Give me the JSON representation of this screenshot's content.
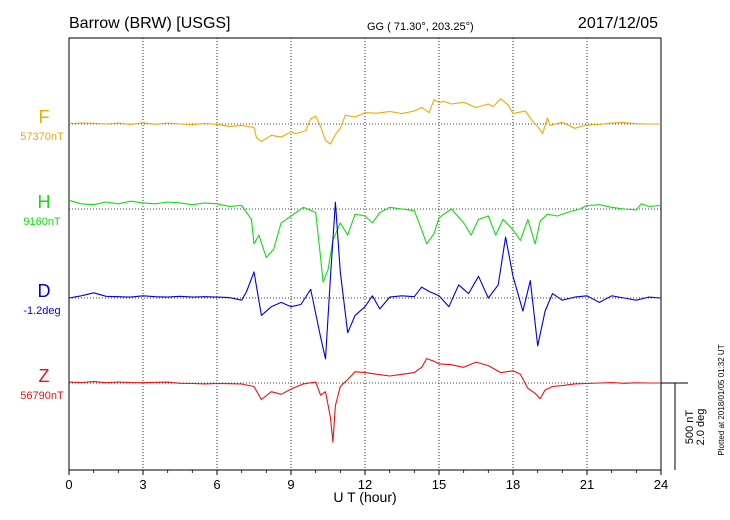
{
  "chart_data": {
    "type": "line",
    "title": "Barrow (BRW)  [USGS]",
    "coordinates": "GG ( 71.30°, 203.25°)",
    "date": "2017/12/05",
    "xlabel": "U T (hour)",
    "xlim": [
      0,
      24
    ],
    "x_ticks": [
      "0",
      "3",
      "6",
      "9",
      "12",
      "15",
      "18",
      "21",
      "24"
    ],
    "grid": true,
    "scale_bar": {
      "value_nT": "500 nT",
      "value_deg": "2.0 deg"
    },
    "plotted_note": "Plotted at 2018/01/05 01:32 UT",
    "series": [
      {
        "name": "F",
        "baseline_label": "57370nT",
        "color": "#f2a900",
        "unit": "nT",
        "baseline": 57370,
        "points": [
          [
            0,
            3
          ],
          [
            0.5,
            5
          ],
          [
            1,
            4
          ],
          [
            1.5,
            0
          ],
          [
            2,
            5
          ],
          [
            2.5,
            -3
          ],
          [
            3,
            7
          ],
          [
            3.5,
            -2
          ],
          [
            4,
            6
          ],
          [
            4.5,
            0
          ],
          [
            5,
            -4
          ],
          [
            5.5,
            3
          ],
          [
            6,
            -2
          ],
          [
            6.5,
            -14
          ],
          [
            7,
            -8
          ],
          [
            7.5,
            -20
          ],
          [
            7.6,
            -80
          ],
          [
            7.8,
            -100
          ],
          [
            8.2,
            -65
          ],
          [
            8.6,
            -75
          ],
          [
            9,
            -45
          ],
          [
            9.2,
            -55
          ],
          [
            9.6,
            -38
          ],
          [
            9.8,
            30
          ],
          [
            10,
            45
          ],
          [
            10.2,
            -15
          ],
          [
            10.4,
            -95
          ],
          [
            10.6,
            -115
          ],
          [
            10.8,
            -60
          ],
          [
            11,
            -25
          ],
          [
            11.2,
            50
          ],
          [
            11.6,
            40
          ],
          [
            12,
            65
          ],
          [
            12.5,
            62
          ],
          [
            13,
            72
          ],
          [
            13.5,
            60
          ],
          [
            14,
            75
          ],
          [
            14.3,
            95
          ],
          [
            14.6,
            65
          ],
          [
            14.8,
            140
          ],
          [
            15,
            125
          ],
          [
            15.2,
            130
          ],
          [
            15.5,
            115
          ],
          [
            16,
            125
          ],
          [
            16.5,
            95
          ],
          [
            17,
            115
          ],
          [
            17.2,
            100
          ],
          [
            17.5,
            145
          ],
          [
            17.8,
            110
          ],
          [
            18,
            60
          ],
          [
            18.5,
            75
          ],
          [
            18.8,
            15
          ],
          [
            19,
            -15
          ],
          [
            19.2,
            -55
          ],
          [
            19.4,
            35
          ],
          [
            19.5,
            -10
          ],
          [
            19.7,
            0
          ],
          [
            20,
            10
          ],
          [
            20.5,
            -25
          ],
          [
            21,
            -5
          ],
          [
            21.5,
            -3
          ],
          [
            22,
            5
          ],
          [
            22.5,
            8
          ],
          [
            23,
            2
          ],
          [
            23.5,
            0
          ],
          [
            24,
            0
          ]
        ]
      },
      {
        "name": "H",
        "baseline_label": "9160nT",
        "color": "#11dd11",
        "unit": "nT",
        "baseline": 9160,
        "points": [
          [
            0,
            50
          ],
          [
            0.5,
            30
          ],
          [
            1,
            25
          ],
          [
            1.5,
            40
          ],
          [
            2,
            30
          ],
          [
            2.5,
            45
          ],
          [
            3,
            35
          ],
          [
            3.5,
            30
          ],
          [
            4,
            40
          ],
          [
            4.5,
            35
          ],
          [
            5,
            25
          ],
          [
            5.5,
            35
          ],
          [
            6,
            30
          ],
          [
            6.5,
            15
          ],
          [
            7,
            20
          ],
          [
            7.2,
            -20
          ],
          [
            7.4,
            -60
          ],
          [
            7.5,
            -200
          ],
          [
            7.7,
            -150
          ],
          [
            8,
            -280
          ],
          [
            8.3,
            -230
          ],
          [
            8.6,
            -80
          ],
          [
            9,
            -40
          ],
          [
            9.5,
            10
          ],
          [
            10,
            -20
          ],
          [
            10.2,
            -280
          ],
          [
            10.3,
            -420
          ],
          [
            10.5,
            -350
          ],
          [
            10.7,
            -180
          ],
          [
            11,
            -80
          ],
          [
            11.3,
            -150
          ],
          [
            11.6,
            -30
          ],
          [
            12,
            -40
          ],
          [
            12.3,
            -80
          ],
          [
            12.6,
            -20
          ],
          [
            13,
            10
          ],
          [
            13.5,
            0
          ],
          [
            14,
            -10
          ],
          [
            14.3,
            -120
          ],
          [
            14.5,
            -200
          ],
          [
            14.8,
            -140
          ],
          [
            15,
            -50
          ],
          [
            15.5,
            0
          ],
          [
            16,
            -80
          ],
          [
            16.3,
            -150
          ],
          [
            16.6,
            -60
          ],
          [
            17,
            -40
          ],
          [
            17.3,
            -150
          ],
          [
            17.6,
            -60
          ],
          [
            18,
            -120
          ],
          [
            18.3,
            -180
          ],
          [
            18.6,
            -60
          ],
          [
            18.9,
            -200
          ],
          [
            19.1,
            -70
          ],
          [
            19.4,
            -30
          ],
          [
            19.8,
            -40
          ],
          [
            20.2,
            -20
          ],
          [
            20.7,
            0
          ],
          [
            21,
            20
          ],
          [
            21.5,
            25
          ],
          [
            22,
            10
          ],
          [
            22.5,
            0
          ],
          [
            23,
            -5
          ],
          [
            23.2,
            30
          ],
          [
            23.5,
            15
          ],
          [
            24,
            20
          ]
        ]
      },
      {
        "name": "D",
        "baseline_label": "-1.2deg",
        "color": "#0000dd",
        "unit": "deg",
        "baseline": -1.2,
        "points": [
          [
            0,
            0.0
          ],
          [
            0.5,
            0.05
          ],
          [
            1,
            0.12
          ],
          [
            1.5,
            0.04
          ],
          [
            2,
            0.03
          ],
          [
            2.5,
            0.02
          ],
          [
            3,
            0.05
          ],
          [
            3.5,
            0.03
          ],
          [
            4,
            0.02
          ],
          [
            4.5,
            0.04
          ],
          [
            5,
            0.02
          ],
          [
            5.5,
            0.03
          ],
          [
            6,
            0.02
          ],
          [
            6.5,
            0.01
          ],
          [
            7,
            -0.05
          ],
          [
            7.2,
            0.15
          ],
          [
            7.5,
            0.6
          ],
          [
            7.8,
            -0.4
          ],
          [
            8.2,
            -0.2
          ],
          [
            8.6,
            -0.1
          ],
          [
            9,
            -0.2
          ],
          [
            9.4,
            -0.15
          ],
          [
            9.8,
            0.2
          ],
          [
            10.2,
            -0.9
          ],
          [
            10.4,
            -1.4
          ],
          [
            10.6,
            0.5
          ],
          [
            10.8,
            2.2
          ],
          [
            11,
            0.6
          ],
          [
            11.3,
            -0.8
          ],
          [
            11.6,
            -0.4
          ],
          [
            12,
            -0.2
          ],
          [
            12.3,
            0.05
          ],
          [
            12.6,
            -0.25
          ],
          [
            13,
            0.02
          ],
          [
            13.5,
            0.05
          ],
          [
            14,
            0.03
          ],
          [
            14.3,
            0.25
          ],
          [
            14.6,
            0.15
          ],
          [
            15,
            0.05
          ],
          [
            15.4,
            -0.2
          ],
          [
            15.8,
            0.3
          ],
          [
            16.2,
            0.1
          ],
          [
            16.6,
            0.5
          ],
          [
            17,
            0.0
          ],
          [
            17.4,
            0.3
          ],
          [
            17.7,
            1.4
          ],
          [
            18,
            0.5
          ],
          [
            18.4,
            -0.3
          ],
          [
            18.7,
            0.4
          ],
          [
            19,
            -1.1
          ],
          [
            19.3,
            -0.3
          ],
          [
            19.6,
            0.1
          ],
          [
            20,
            -0.05
          ],
          [
            20.5,
            0.02
          ],
          [
            21,
            0.05
          ],
          [
            21.5,
            -0.1
          ],
          [
            22,
            0.05
          ],
          [
            22.5,
            0.0
          ],
          [
            23,
            -0.05
          ],
          [
            23.5,
            0.02
          ],
          [
            24,
            0.0
          ]
        ]
      },
      {
        "name": "Z",
        "baseline_label": "56790nT",
        "color": "#ee1111",
        "unit": "nT",
        "baseline": 56790,
        "points": [
          [
            0,
            5
          ],
          [
            0.5,
            3
          ],
          [
            1,
            8
          ],
          [
            1.5,
            2
          ],
          [
            2,
            6
          ],
          [
            2.5,
            3
          ],
          [
            3,
            2
          ],
          [
            3.5,
            4
          ],
          [
            4,
            5
          ],
          [
            4.5,
            -2
          ],
          [
            5,
            -3
          ],
          [
            5.5,
            -5
          ],
          [
            6,
            -3
          ],
          [
            6.5,
            -4
          ],
          [
            7,
            -6
          ],
          [
            7.5,
            -20
          ],
          [
            7.8,
            -95
          ],
          [
            8.2,
            -50
          ],
          [
            8.6,
            -65
          ],
          [
            9,
            -35
          ],
          [
            9.5,
            -5
          ],
          [
            10,
            5
          ],
          [
            10.2,
            -70
          ],
          [
            10.4,
            -50
          ],
          [
            10.6,
            -200
          ],
          [
            10.7,
            -340
          ],
          [
            10.8,
            -130
          ],
          [
            11,
            -20
          ],
          [
            11.3,
            20
          ],
          [
            11.6,
            65
          ],
          [
            12,
            60
          ],
          [
            12.5,
            50
          ],
          [
            13,
            40
          ],
          [
            13.5,
            50
          ],
          [
            14,
            60
          ],
          [
            14.3,
            90
          ],
          [
            14.5,
            140
          ],
          [
            14.8,
            125
          ],
          [
            15,
            110
          ],
          [
            15.5,
            105
          ],
          [
            16,
            90
          ],
          [
            16.5,
            120
          ],
          [
            17,
            100
          ],
          [
            17.5,
            60
          ],
          [
            18,
            70
          ],
          [
            18.3,
            50
          ],
          [
            18.6,
            -30
          ],
          [
            18.9,
            -60
          ],
          [
            19.1,
            -90
          ],
          [
            19.3,
            -40
          ],
          [
            19.6,
            -20
          ],
          [
            20,
            -15
          ],
          [
            20.5,
            -5
          ],
          [
            21,
            -3
          ],
          [
            21.5,
            0
          ],
          [
            22,
            3
          ],
          [
            22.5,
            -2
          ],
          [
            23,
            1
          ],
          [
            23.5,
            0
          ],
          [
            24,
            0
          ]
        ]
      }
    ]
  }
}
